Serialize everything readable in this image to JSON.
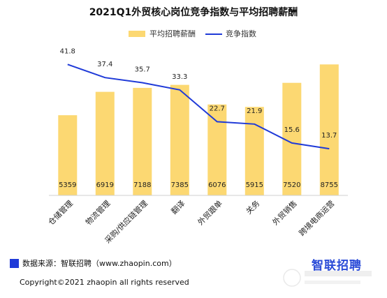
{
  "chart_data": {
    "type": "bar",
    "title": "2021Q1外贸核心岗位竞争指数与平均招聘薪酬",
    "categories": [
      "仓储管理",
      "物流管理",
      "采购/供应链管理",
      "翻译",
      "外贸跟单",
      "关务",
      "外贸销售",
      "跨境电商运营"
    ],
    "series": [
      {
        "name": "平均招聘薪酬",
        "type": "bar",
        "values": [
          5359,
          6919,
          7188,
          7385,
          6076,
          5915,
          7520,
          8755
        ],
        "color": "#fcd872"
      },
      {
        "name": "竞争指数",
        "type": "line",
        "values": [
          41.8,
          37.4,
          35.7,
          33.3,
          22.7,
          21.9,
          15.6,
          13.7
        ],
        "color": "#1f3ad8"
      }
    ],
    "bar_ylim": [
      0,
      9000
    ],
    "line_ylim": [
      0,
      50
    ],
    "legend_position": "top-right",
    "grid": false
  },
  "source": {
    "label": "数据来源：智联招聘（www.zhaopin.com）"
  },
  "footer": {
    "copyright": "Copyright©2021 zhaopin all rights reserved"
  },
  "logo": {
    "text": "智联招聘"
  }
}
